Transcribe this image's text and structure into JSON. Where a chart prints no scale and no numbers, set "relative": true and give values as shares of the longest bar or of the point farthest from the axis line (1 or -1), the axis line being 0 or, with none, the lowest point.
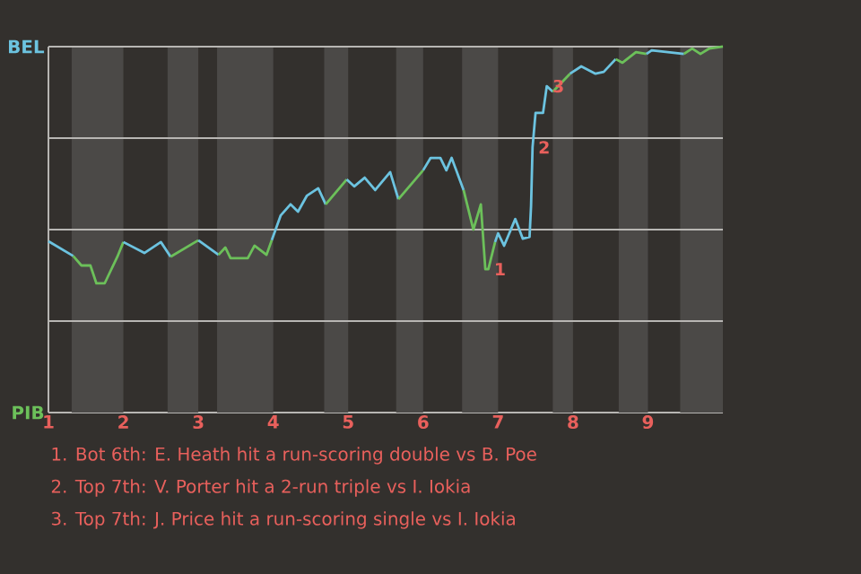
{
  "chart_data": {
    "type": "line",
    "series": [
      {
        "color": "#6cc3e0",
        "x": [
          1.0,
          1.33
        ],
        "values": [
          0.468,
          0.428
        ]
      },
      {
        "color": "#6cc05a",
        "x": [
          1.33,
          1.44,
          1.56,
          1.64,
          1.75,
          1.92,
          2.0
        ],
        "values": [
          0.428,
          0.402,
          0.402,
          0.353,
          0.353,
          0.426,
          0.466
        ]
      },
      {
        "color": "#6cc3e0",
        "x": [
          2.0,
          2.28,
          2.5,
          2.63
        ],
        "values": [
          0.466,
          0.436,
          0.466,
          0.426
        ]
      },
      {
        "color": "#6cc05a",
        "x": [
          2.63,
          3.0
        ],
        "values": [
          0.426,
          0.471
        ]
      },
      {
        "color": "#6cc3e0",
        "x": [
          3.0,
          3.27
        ],
        "values": [
          0.471,
          0.431
        ]
      },
      {
        "color": "#6cc05a",
        "x": [
          3.27,
          3.36,
          3.43,
          3.66,
          3.75,
          3.91,
          3.98
        ],
        "values": [
          0.431,
          0.451,
          0.422,
          0.422,
          0.456,
          0.431,
          0.471
        ]
      },
      {
        "color": "#6cc3e0",
        "x": [
          3.98,
          4.1,
          4.23,
          4.33,
          4.45,
          4.6,
          4.7
        ],
        "values": [
          0.471,
          0.539,
          0.569,
          0.549,
          0.593,
          0.613,
          0.569
        ]
      },
      {
        "color": "#6cc05a",
        "x": [
          4.7,
          4.98
        ],
        "values": [
          0.569,
          0.637
        ]
      },
      {
        "color": "#6cc3e0",
        "x": [
          4.98,
          5.08,
          5.22,
          5.36,
          5.56,
          5.67
        ],
        "values": [
          0.637,
          0.618,
          0.642,
          0.608,
          0.657,
          0.583
        ]
      },
      {
        "color": "#6cc05a",
        "x": [
          5.67,
          6.0
        ],
        "values": [
          0.583,
          0.662
        ]
      },
      {
        "color": "#6cc3e0",
        "x": [
          6.0,
          6.1,
          6.23,
          6.31,
          6.38,
          6.54
        ],
        "values": [
          0.662,
          0.696,
          0.696,
          0.662,
          0.696,
          0.608
        ]
      },
      {
        "color": "#6cc05a",
        "x": [
          6.54,
          6.67,
          6.77,
          6.83,
          6.87,
          6.96
        ],
        "values": [
          0.608,
          0.5,
          0.569,
          0.392,
          0.392,
          0.466
        ]
      },
      {
        "color": "#6cc3e0",
        "x": [
          6.96,
          7.0,
          7.08,
          7.23,
          7.33,
          7.42,
          7.44,
          7.46,
          7.5,
          7.6,
          7.65,
          7.73
        ],
        "values": [
          0.466,
          0.49,
          0.456,
          0.529,
          0.475,
          0.48,
          0.564,
          0.725,
          0.819,
          0.819,
          0.892,
          0.877
        ]
      },
      {
        "color": "#6cc05a",
        "x": [
          7.73,
          7.96
        ],
        "values": [
          0.877,
          0.926
        ]
      },
      {
        "color": "#6cc3e0",
        "x": [
          7.96,
          8.11,
          8.3,
          8.41,
          8.57
        ],
        "values": [
          0.926,
          0.946,
          0.926,
          0.931,
          0.966
        ]
      },
      {
        "color": "#6cc05a",
        "x": [
          8.57,
          8.66,
          8.84,
          8.98
        ],
        "values": [
          0.966,
          0.956,
          0.985,
          0.98
        ]
      },
      {
        "color": "#6cc3e0",
        "x": [
          8.98,
          9.05,
          9.48
        ],
        "values": [
          0.98,
          0.99,
          0.98
        ]
      },
      {
        "color": "#6cc05a",
        "x": [
          9.48,
          9.59,
          9.7,
          9.82,
          10.0
        ],
        "values": [
          0.98,
          0.995,
          0.98,
          0.995,
          1.0
        ]
      }
    ],
    "relative": true,
    "xlim": [
      1,
      10
    ],
    "xticks": [
      1,
      2,
      3,
      4,
      5,
      6,
      7,
      8,
      9
    ],
    "ref_lines": [
      {
        "axis": "y",
        "value": 0.25,
        "color": "#b8b6b3"
      },
      {
        "axis": "y",
        "value": 0.5,
        "color": "#b8b6b3"
      },
      {
        "axis": "y",
        "value": 0.75,
        "color": "#b8b6b3"
      },
      {
        "axis": "y",
        "value": 1,
        "color": "#b8b6b3"
      }
    ],
    "bands": [
      {
        "axis": "x",
        "from": 1.31,
        "to": 2,
        "color": "#4b4947"
      },
      {
        "axis": "x",
        "from": 2.59,
        "to": 3,
        "color": "#4b4947"
      },
      {
        "axis": "x",
        "from": 3.25,
        "to": 4,
        "color": "#4b4947"
      },
      {
        "axis": "x",
        "from": 4.68,
        "to": 5,
        "color": "#4b4947"
      },
      {
        "axis": "x",
        "from": 5.64,
        "to": 6,
        "color": "#4b4947"
      },
      {
        "axis": "x",
        "from": 6.52,
        "to": 7,
        "color": "#4b4947"
      },
      {
        "axis": "x",
        "from": 7.73,
        "to": 8,
        "color": "#4b4947"
      },
      {
        "axis": "x",
        "from": 8.61,
        "to": 9,
        "color": "#4b4947"
      },
      {
        "axis": "x",
        "from": 9.43,
        "to": 10,
        "color": "#4b4947"
      }
    ],
    "annotations": [
      "BEL",
      "PIB",
      {
        "text": "1",
        "x": 6.87,
        "y": 0.392
      },
      {
        "text": "2",
        "x": 7.46,
        "y": 0.725
      },
      {
        "text": "3",
        "x": 7.65,
        "y": 0.892
      },
      "1. Bot 6th: E. Heath hit a run-scoring double vs B. Poe",
      "2. Top 7th: V. Porter hit a 2-run triple vs I. Iokia",
      "3. Top 7th: J. Price hit a run-scoring single vs I. Iokia"
    ]
  }
}
